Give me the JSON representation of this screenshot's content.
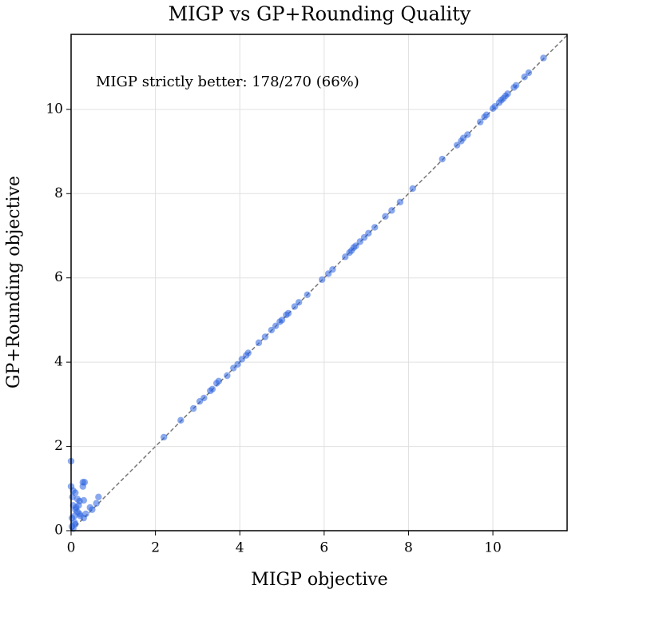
{
  "chart_data": {
    "type": "scatter",
    "title": "MIGP vs GP+Rounding Quality",
    "x_label": "MIGP objective",
    "y_label": "GP+Rounding objective",
    "annotation": "MIGP strictly better: 178/270 (66%)",
    "color": "#2a62e0",
    "grid": true,
    "xlim": [
      0,
      11.76
    ],
    "ylim": [
      0,
      11.78
    ],
    "xticks": [
      0,
      2,
      4,
      6,
      8,
      10
    ],
    "yticks": [
      0,
      2,
      4,
      6,
      8,
      10
    ],
    "x": [
      2.2,
      2.6,
      2.9,
      3.05,
      3.15,
      3.3,
      3.35,
      3.45,
      3.5,
      3.7,
      3.85,
      3.95,
      4.05,
      4.15,
      4.2,
      4.45,
      4.6,
      4.75,
      4.85,
      4.95,
      5.0,
      5.1,
      5.15,
      5.3,
      5.4,
      5.6,
      5.95,
      6.1,
      6.2,
      6.5,
      6.6,
      6.65,
      6.7,
      6.75,
      6.85,
      6.95,
      7.05,
      7.2,
      7.45,
      7.6,
      7.8,
      8.1,
      8.8,
      9.15,
      9.25,
      9.3,
      9.4,
      9.7,
      9.8,
      9.85,
      10.0,
      10.05,
      10.15,
      10.2,
      10.25,
      10.3,
      10.35,
      10.5,
      10.55,
      10.75,
      10.85,
      11.2,
      0.0,
      0.0,
      0.05,
      0.1,
      0.15,
      0.2,
      0.3,
      0.28,
      0.32,
      0.28,
      0.05,
      0.1,
      0.15,
      0.2,
      0.02,
      0.08,
      0.12,
      0.03,
      0.22,
      0.35,
      0.45,
      0.6,
      0.65,
      0.5,
      0.3,
      0.02,
      0.1,
      0.05,
      0.18,
      0.08
    ],
    "y": [
      2.22,
      2.62,
      2.9,
      3.07,
      3.15,
      3.32,
      3.36,
      3.5,
      3.55,
      3.68,
      3.86,
      3.95,
      4.07,
      4.16,
      4.22,
      4.46,
      4.6,
      4.76,
      4.86,
      4.96,
      5.0,
      5.12,
      5.16,
      5.32,
      5.42,
      5.6,
      5.96,
      6.1,
      6.2,
      6.5,
      6.6,
      6.65,
      6.72,
      6.76,
      6.86,
      6.96,
      7.06,
      7.2,
      7.46,
      7.6,
      7.8,
      8.12,
      8.82,
      9.15,
      9.25,
      9.32,
      9.4,
      9.7,
      9.82,
      9.87,
      10.02,
      10.07,
      10.16,
      10.22,
      10.26,
      10.32,
      10.37,
      10.52,
      10.57,
      10.77,
      10.87,
      11.22,
      1.65,
      1.05,
      0.95,
      0.9,
      0.75,
      0.7,
      0.72,
      1.15,
      1.15,
      1.05,
      0.6,
      0.5,
      0.45,
      0.4,
      0.3,
      0.2,
      0.55,
      0.8,
      0.35,
      0.4,
      0.55,
      0.65,
      0.8,
      0.5,
      0.3,
      0.1,
      0.15,
      0.05,
      0.6,
      0.35
    ]
  }
}
